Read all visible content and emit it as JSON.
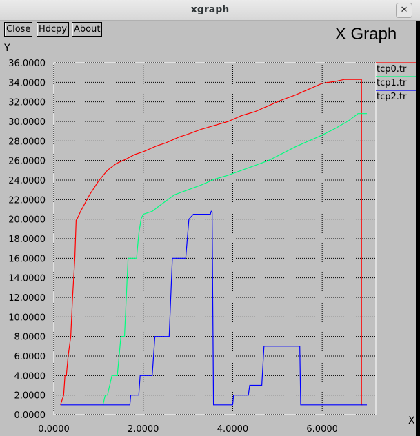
{
  "window": {
    "title": "xgraph",
    "close_glyph": "✕"
  },
  "toolbar": {
    "close_label": "Close",
    "hdcpy_label": "Hdcpy",
    "about_label": "About"
  },
  "chart_data": {
    "type": "line",
    "title": "X Graph",
    "xlabel": "X",
    "ylabel": "Y",
    "xlim": [
      0,
      7.2
    ],
    "ylim": [
      0,
      36
    ],
    "grid": true,
    "legend_position": "right",
    "x_ticks": [
      "0.0000",
      "2.0000",
      "4.0000",
      "6.0000"
    ],
    "y_ticks": [
      "0.0000",
      "2.0000",
      "4.0000",
      "6.0000",
      "8.0000",
      "10.0000",
      "12.0000",
      "14.0000",
      "16.0000",
      "18.0000",
      "20.0000",
      "22.0000",
      "24.0000",
      "26.0000",
      "28.0000",
      "30.0000",
      "32.0000",
      "34.0000",
      "36.0000"
    ],
    "series": [
      {
        "name": "tcp0.tr",
        "color": "#ff0000",
        "x": [
          0.15,
          0.22,
          0.25,
          0.28,
          0.32,
          0.38,
          0.42,
          0.47,
          0.5,
          0.52,
          0.6,
          0.8,
          1.0,
          1.2,
          1.4,
          1.6,
          1.8,
          2.0,
          2.3,
          2.5,
          2.8,
          3.0,
          3.3,
          3.6,
          3.9,
          4.2,
          4.5,
          4.8,
          5.1,
          5.4,
          5.7,
          6.0,
          6.3,
          6.5,
          6.88,
          6.88,
          6.9
        ],
        "y": [
          1,
          2,
          4,
          4,
          6,
          8,
          12,
          16,
          19.9,
          20,
          20.8,
          22.5,
          23.9,
          25.0,
          25.7,
          26.1,
          26.6,
          26.9,
          27.5,
          27.8,
          28.4,
          28.7,
          29.2,
          29.6,
          30.0,
          30.6,
          31.0,
          31.6,
          32.2,
          32.7,
          33.3,
          33.9,
          34.1,
          34.3,
          34.3,
          1.0,
          1.0
        ]
      },
      {
        "name": "tcp1.tr",
        "color": "#00ff7f",
        "x": [
          1.1,
          1.15,
          1.2,
          1.3,
          1.42,
          1.5,
          1.58,
          1.66,
          1.72,
          1.75,
          1.85,
          1.9,
          1.95,
          2.0,
          2.2,
          2.4,
          2.7,
          3.0,
          3.3,
          3.6,
          3.9,
          4.2,
          4.5,
          4.8,
          5.1,
          5.4,
          5.7,
          6.0,
          6.3,
          6.6,
          6.8,
          7.0
        ],
        "y": [
          1,
          2,
          2,
          4,
          4,
          8,
          8,
          16,
          16,
          16,
          16,
          18.5,
          20,
          20.5,
          20.8,
          21.5,
          22.5,
          23,
          23.5,
          24.1,
          24.5,
          25,
          25.5,
          26,
          26.7,
          27.4,
          28,
          28.6,
          29.3,
          30.1,
          30.8,
          30.8
        ]
      },
      {
        "name": "tcp2.tr",
        "color": "#0000ff",
        "x": [
          0.15,
          1.7,
          1.72,
          1.9,
          1.93,
          2.2,
          2.26,
          2.58,
          2.65,
          2.95,
          3.02,
          3.12,
          3.5,
          3.52,
          3.54,
          3.57,
          3.6,
          4.0,
          4.02,
          4.35,
          4.38,
          4.65,
          4.7,
          5.5,
          5.52,
          7.0
        ],
        "y": [
          1,
          1,
          2,
          2,
          4,
          4,
          8,
          8,
          16,
          16,
          20,
          20.5,
          20.5,
          20.8,
          20.7,
          1,
          1,
          1,
          2,
          2,
          3,
          3,
          7,
          7,
          1,
          1
        ]
      }
    ]
  }
}
